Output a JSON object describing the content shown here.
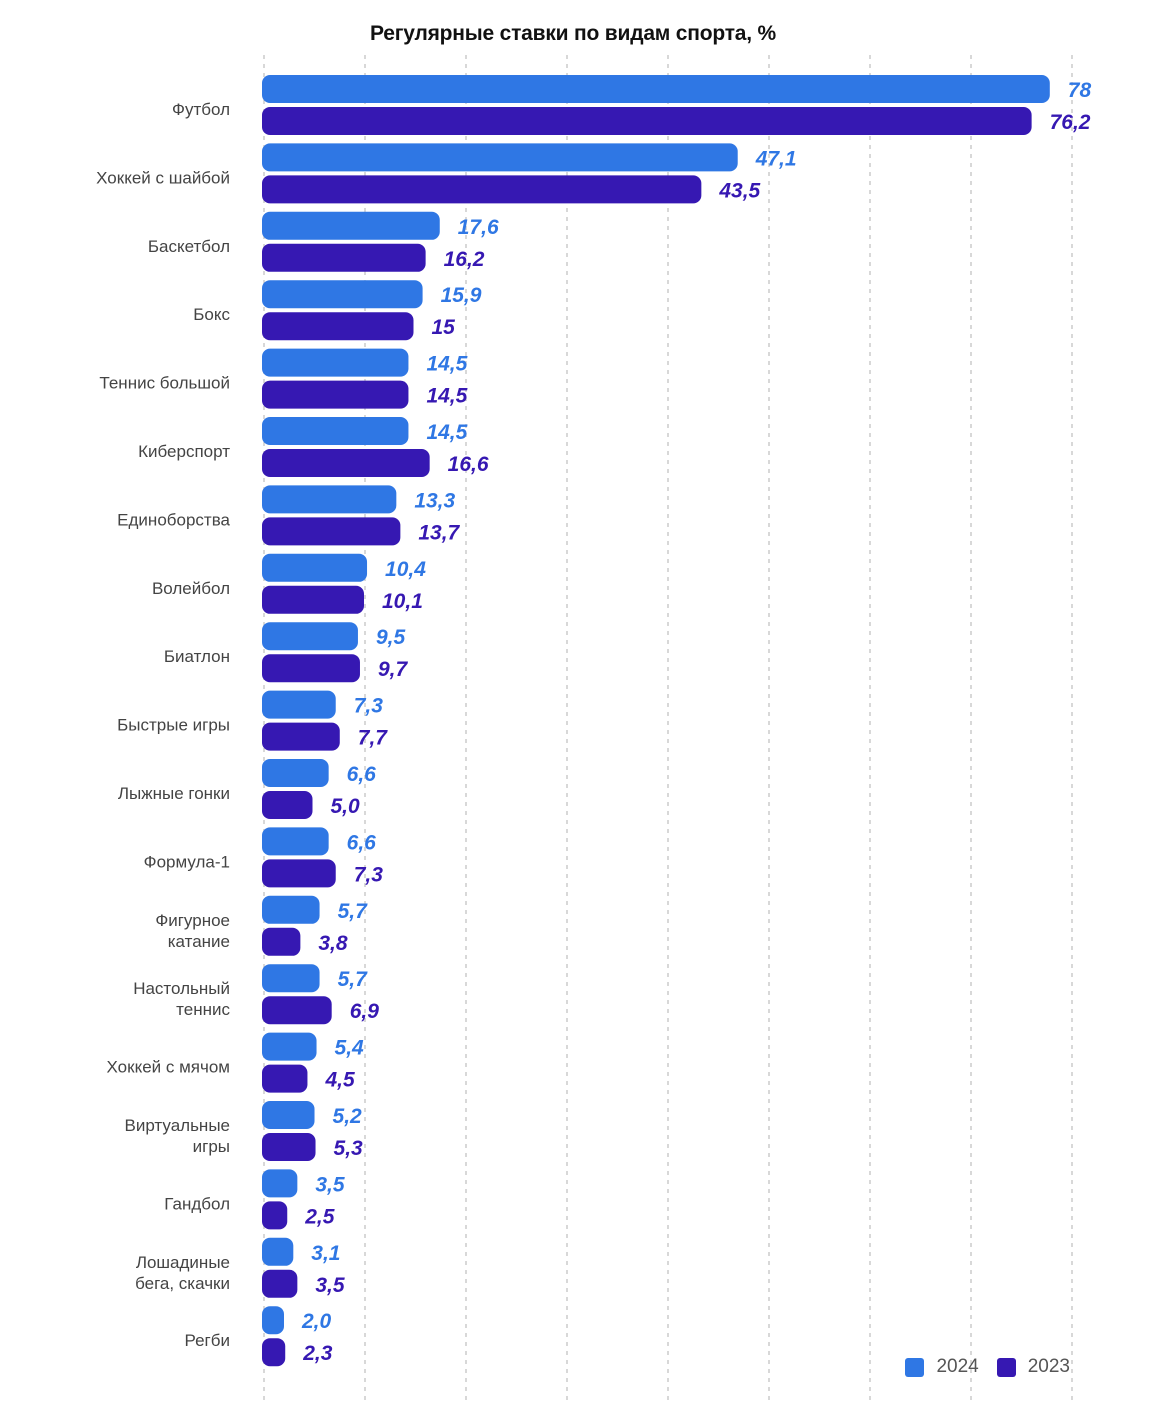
{
  "colors": {
    "s2024": "#2f77e4",
    "s2023": "#3618b2",
    "grid": "#c8c8c8"
  },
  "chart_data": {
    "type": "bar",
    "orientation": "horizontal",
    "title": "Регулярные ставки по видам спорта, %",
    "xlim": [
      0,
      80
    ],
    "grid": "vertical-dashed",
    "legend_position": "bottom-right",
    "categories": [
      [
        "Футбол"
      ],
      [
        "Хоккей с шайбой"
      ],
      [
        "Баскетбол"
      ],
      [
        "Бокс"
      ],
      [
        "Теннис большой"
      ],
      [
        "Киберспорт"
      ],
      [
        "Единоборства"
      ],
      [
        "Волейбол"
      ],
      [
        "Биатлон"
      ],
      [
        "Быстрые игры"
      ],
      [
        "Лыжные гонки"
      ],
      [
        "Формула-1"
      ],
      [
        "Фигурное",
        "катание"
      ],
      [
        "Настольный",
        "теннис"
      ],
      [
        "Хоккей с мячом"
      ],
      [
        "Виртуальные",
        "игры"
      ],
      [
        "Гандбол"
      ],
      [
        "Лошадиные",
        "бега, скачки"
      ],
      [
        "Регби"
      ]
    ],
    "series": [
      {
        "name": "2024",
        "values": [
          78,
          47.1,
          17.6,
          15.9,
          14.5,
          14.5,
          13.3,
          10.4,
          9.5,
          7.3,
          6.6,
          6.6,
          5.7,
          5.7,
          5.4,
          5.2,
          3.5,
          3.1,
          2.0
        ],
        "labels": [
          "78",
          "47,1",
          "17,6",
          "15,9",
          "14,5",
          "14,5",
          "13,3",
          "10,4",
          "9,5",
          "7,3",
          "6,6",
          "6,6",
          "5,7",
          "5,7",
          "5,4",
          "5,2",
          "3,5",
          "3,1",
          "2,0"
        ]
      },
      {
        "name": "2023",
        "values": [
          76.2,
          43.5,
          16.2,
          15,
          14.5,
          16.6,
          13.7,
          10.1,
          9.7,
          7.7,
          5.0,
          7.3,
          3.8,
          6.9,
          4.5,
          5.3,
          2.5,
          3.5,
          2.3
        ],
        "labels": [
          "76,2",
          "43,5",
          "16,2",
          "15",
          "14,5",
          "16,6",
          "13,7",
          "10,1",
          "9,7",
          "7,7",
          "5,0",
          "7,3",
          "3,8",
          "6,9",
          "4,5",
          "5,3",
          "2,5",
          "3,5",
          "2,3"
        ]
      }
    ]
  }
}
